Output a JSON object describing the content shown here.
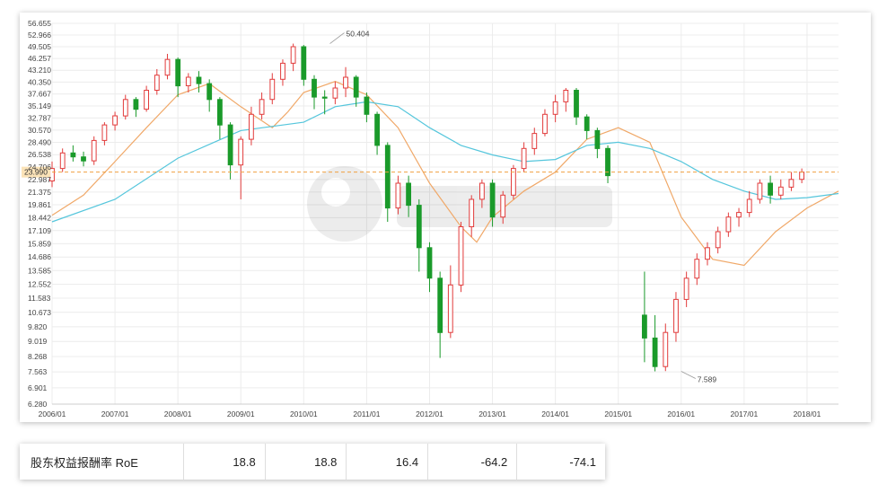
{
  "chart_data": {
    "type": "candlestick",
    "y_axis": {
      "scale": "log",
      "ticks": [
        "56.655",
        "52.966",
        "49.505",
        "46.257",
        "43.210",
        "40.350",
        "37.667",
        "35.149",
        "32.787",
        "30.570",
        "28.490",
        "26.538",
        "24.706",
        "22.987",
        "21.375",
        "19.861",
        "18.442",
        "17.109",
        "15.859",
        "14.686",
        "13.585",
        "12.552",
        "11.583",
        "10.673",
        "9.820",
        "9.019",
        "8.268",
        "7.563",
        "6.901",
        "6.280"
      ],
      "range": [
        6.28,
        56.655
      ]
    },
    "x_axis": {
      "ticks": [
        "2006/01",
        "2007/01",
        "2008/01",
        "2009/01",
        "2010/01",
        "2011/01",
        "2012/01",
        "2013/01",
        "2014/01",
        "2015/01",
        "2016/01",
        "2017/01",
        "2018/01"
      ],
      "range": [
        "2006/01",
        "2018/07"
      ]
    },
    "current_price": {
      "value": 23.99,
      "label": "23.990",
      "color": "#f0a040"
    },
    "annotations": [
      {
        "label": "50.404",
        "date": "2010/06",
        "value": 50.404
      },
      {
        "label": "7.589",
        "date": "2016/01",
        "value": 7.589
      }
    ],
    "up_color": "#e23b3b",
    "down_color": "#1a9a2a",
    "series": [
      {
        "name": "",
        "type": "line",
        "color": "#f0a868",
        "points": [
          [
            "2006/01",
            18.7
          ],
          [
            "2006/07",
            21.0
          ],
          [
            "2007/01",
            25.5
          ],
          [
            "2007/07",
            31.0
          ],
          [
            "2008/01",
            37.5
          ],
          [
            "2008/07",
            40.0
          ],
          [
            "2009/01",
            35.0
          ],
          [
            "2009/07",
            31.0
          ],
          [
            "2009/10",
            34.0
          ],
          [
            "2010/01",
            38.0
          ],
          [
            "2010/07",
            40.5
          ],
          [
            "2011/01",
            37.5
          ],
          [
            "2011/07",
            31.0
          ],
          [
            "2012/01",
            22.5
          ],
          [
            "2012/07",
            17.5
          ],
          [
            "2012/10",
            16.0
          ],
          [
            "2013/01",
            18.5
          ],
          [
            "2013/07",
            21.5
          ],
          [
            "2014/01",
            24.0
          ],
          [
            "2014/07",
            29.0
          ],
          [
            "2015/01",
            31.0
          ],
          [
            "2015/07",
            28.5
          ],
          [
            "2016/01",
            18.5
          ],
          [
            "2016/07",
            14.5
          ],
          [
            "2017/01",
            14.0
          ],
          [
            "2017/07",
            17.0
          ],
          [
            "2018/01",
            19.5
          ],
          [
            "2018/07",
            21.5
          ]
        ]
      },
      {
        "name": "",
        "type": "line",
        "color": "#55c6dc",
        "points": [
          [
            "2006/01",
            18.0
          ],
          [
            "2007/01",
            20.5
          ],
          [
            "2008/01",
            26.0
          ],
          [
            "2009/01",
            30.5
          ],
          [
            "2010/01",
            32.0
          ],
          [
            "2010/07",
            35.0
          ],
          [
            "2011/01",
            36.0
          ],
          [
            "2011/07",
            35.0
          ],
          [
            "2012/01",
            31.0
          ],
          [
            "2012/07",
            28.0
          ],
          [
            "2013/01",
            26.5
          ],
          [
            "2013/07",
            25.5
          ],
          [
            "2014/01",
            25.8
          ],
          [
            "2014/07",
            28.0
          ],
          [
            "2015/01",
            28.5
          ],
          [
            "2015/07",
            27.5
          ],
          [
            "2016/01",
            25.5
          ],
          [
            "2016/07",
            23.0
          ],
          [
            "2017/01",
            21.5
          ],
          [
            "2017/07",
            20.5
          ],
          [
            "2018/01",
            20.7
          ],
          [
            "2018/07",
            21.2
          ]
        ]
      }
    ],
    "candles": [
      [
        "2006/01",
        22.8,
        24.5,
        22.0,
        25.5
      ],
      [
        "2006/03",
        24.5,
        26.8,
        24.0,
        27.5
      ],
      [
        "2006/05",
        26.8,
        26.2,
        25.5,
        28.0
      ],
      [
        "2006/07",
        26.2,
        25.6,
        24.8,
        27.0
      ],
      [
        "2006/09",
        25.6,
        28.8,
        25.0,
        29.5
      ],
      [
        "2006/11",
        28.8,
        31.5,
        28.0,
        32.0
      ],
      [
        "2007/01",
        31.5,
        33.2,
        30.5,
        34.0
      ],
      [
        "2007/03",
        33.2,
        36.5,
        32.5,
        37.5
      ],
      [
        "2007/05",
        36.5,
        34.5,
        33.0,
        37.0
      ],
      [
        "2007/07",
        34.5,
        38.5,
        34.0,
        39.5
      ],
      [
        "2007/09",
        38.5,
        42.0,
        37.5,
        43.5
      ],
      [
        "2007/11",
        42.0,
        46.0,
        41.0,
        47.5
      ],
      [
        "2008/01",
        46.0,
        39.5,
        37.0,
        46.5
      ],
      [
        "2008/03",
        39.5,
        41.5,
        38.0,
        42.5
      ],
      [
        "2008/05",
        41.5,
        40.0,
        38.0,
        43.0
      ],
      [
        "2008/07",
        40.0,
        36.5,
        34.0,
        41.0
      ],
      [
        "2008/09",
        36.5,
        31.5,
        29.0,
        37.0
      ],
      [
        "2008/11",
        31.5,
        25.0,
        23.0,
        32.0
      ],
      [
        "2009/01",
        25.0,
        29.0,
        20.5,
        29.5
      ],
      [
        "2009/03",
        29.0,
        33.5,
        28.0,
        35.0
      ],
      [
        "2009/05",
        33.5,
        36.5,
        32.5,
        38.0
      ],
      [
        "2009/07",
        36.5,
        41.0,
        35.5,
        42.5
      ],
      [
        "2009/09",
        41.0,
        45.0,
        39.5,
        46.0
      ],
      [
        "2009/11",
        45.0,
        49.5,
        43.0,
        50.4
      ],
      [
        "2010/01",
        49.5,
        41.0,
        39.5,
        50.0
      ],
      [
        "2010/03",
        41.0,
        37.0,
        34.5,
        42.0
      ],
      [
        "2010/05",
        37.0,
        36.8,
        33.5,
        38.5
      ],
      [
        "2010/07",
        36.8,
        39.0,
        35.5,
        40.5
      ],
      [
        "2010/09",
        39.0,
        41.5,
        37.0,
        44.0
      ],
      [
        "2010/11",
        41.5,
        37.0,
        35.0,
        42.0
      ],
      [
        "2011/01",
        37.0,
        33.5,
        32.0,
        38.0
      ],
      [
        "2011/03",
        33.5,
        28.0,
        26.5,
        34.0
      ],
      [
        "2011/05",
        28.0,
        19.5,
        18.0,
        28.5
      ],
      [
        "2011/07",
        19.5,
        22.5,
        18.8,
        23.5
      ],
      [
        "2011/09",
        22.5,
        19.8,
        18.5,
        23.5
      ],
      [
        "2011/11",
        19.8,
        15.5,
        13.5,
        20.5
      ],
      [
        "2012/01",
        15.5,
        13.0,
        12.0,
        16.0
      ],
      [
        "2012/03",
        13.0,
        9.5,
        8.2,
        13.5
      ],
      [
        "2012/05",
        9.5,
        12.5,
        9.2,
        14.0
      ],
      [
        "2012/07",
        12.5,
        17.5,
        12.0,
        18.0
      ],
      [
        "2012/09",
        17.5,
        20.5,
        16.5,
        21.0
      ],
      [
        "2012/11",
        20.5,
        22.5,
        19.5,
        23.0
      ],
      [
        "2013/01",
        22.5,
        18.5,
        17.5,
        23.0
      ],
      [
        "2013/03",
        18.5,
        21.0,
        17.8,
        21.5
      ],
      [
        "2013/05",
        21.0,
        24.5,
        20.5,
        25.0
      ],
      [
        "2013/07",
        24.5,
        27.5,
        24.0,
        28.5
      ],
      [
        "2013/09",
        27.5,
        30.0,
        26.5,
        31.0
      ],
      [
        "2013/11",
        30.0,
        33.5,
        29.5,
        34.5
      ],
      [
        "2014/01",
        33.5,
        36.0,
        32.0,
        37.5
      ],
      [
        "2014/03",
        36.0,
        38.5,
        34.0,
        39.0
      ],
      [
        "2014/05",
        38.5,
        33.0,
        31.5,
        39.0
      ],
      [
        "2014/07",
        33.0,
        30.5,
        29.0,
        33.5
      ],
      [
        "2014/09",
        30.5,
        27.5,
        26.0,
        31.0
      ],
      [
        "2014/11",
        27.5,
        23.5,
        22.5,
        28.0
      ],
      [
        "2015/06",
        10.5,
        9.2,
        8.0,
        13.5
      ],
      [
        "2015/08",
        9.2,
        7.8,
        7.589,
        10.5
      ],
      [
        "2015/10",
        7.8,
        9.5,
        7.6,
        10.0
      ],
      [
        "2015/12",
        9.5,
        11.5,
        9.0,
        12.0
      ],
      [
        "2016/02",
        11.5,
        13.0,
        11.0,
        13.5
      ],
      [
        "2016/04",
        13.0,
        14.5,
        12.5,
        15.0
      ],
      [
        "2016/06",
        14.5,
        15.5,
        14.0,
        16.0
      ],
      [
        "2016/08",
        15.5,
        17.0,
        15.0,
        17.5
      ],
      [
        "2016/10",
        17.0,
        18.5,
        16.5,
        19.0
      ],
      [
        "2016/12",
        18.5,
        19.0,
        17.5,
        19.5
      ],
      [
        "2017/02",
        19.0,
        20.5,
        18.5,
        21.5
      ],
      [
        "2017/04",
        20.5,
        22.5,
        20.0,
        23.0
      ],
      [
        "2017/06",
        22.5,
        21.0,
        20.0,
        23.5
      ],
      [
        "2017/08",
        21.0,
        22.0,
        20.5,
        23.0
      ],
      [
        "2017/10",
        22.0,
        23.0,
        21.5,
        24.0
      ],
      [
        "2017/12",
        23.0,
        23.99,
        22.5,
        24.5
      ]
    ]
  },
  "metrics_table": {
    "label": "股东权益报酬率 RoE",
    "values": [
      "18.8",
      "18.8",
      "16.4",
      "-64.2",
      "-74.1"
    ]
  }
}
